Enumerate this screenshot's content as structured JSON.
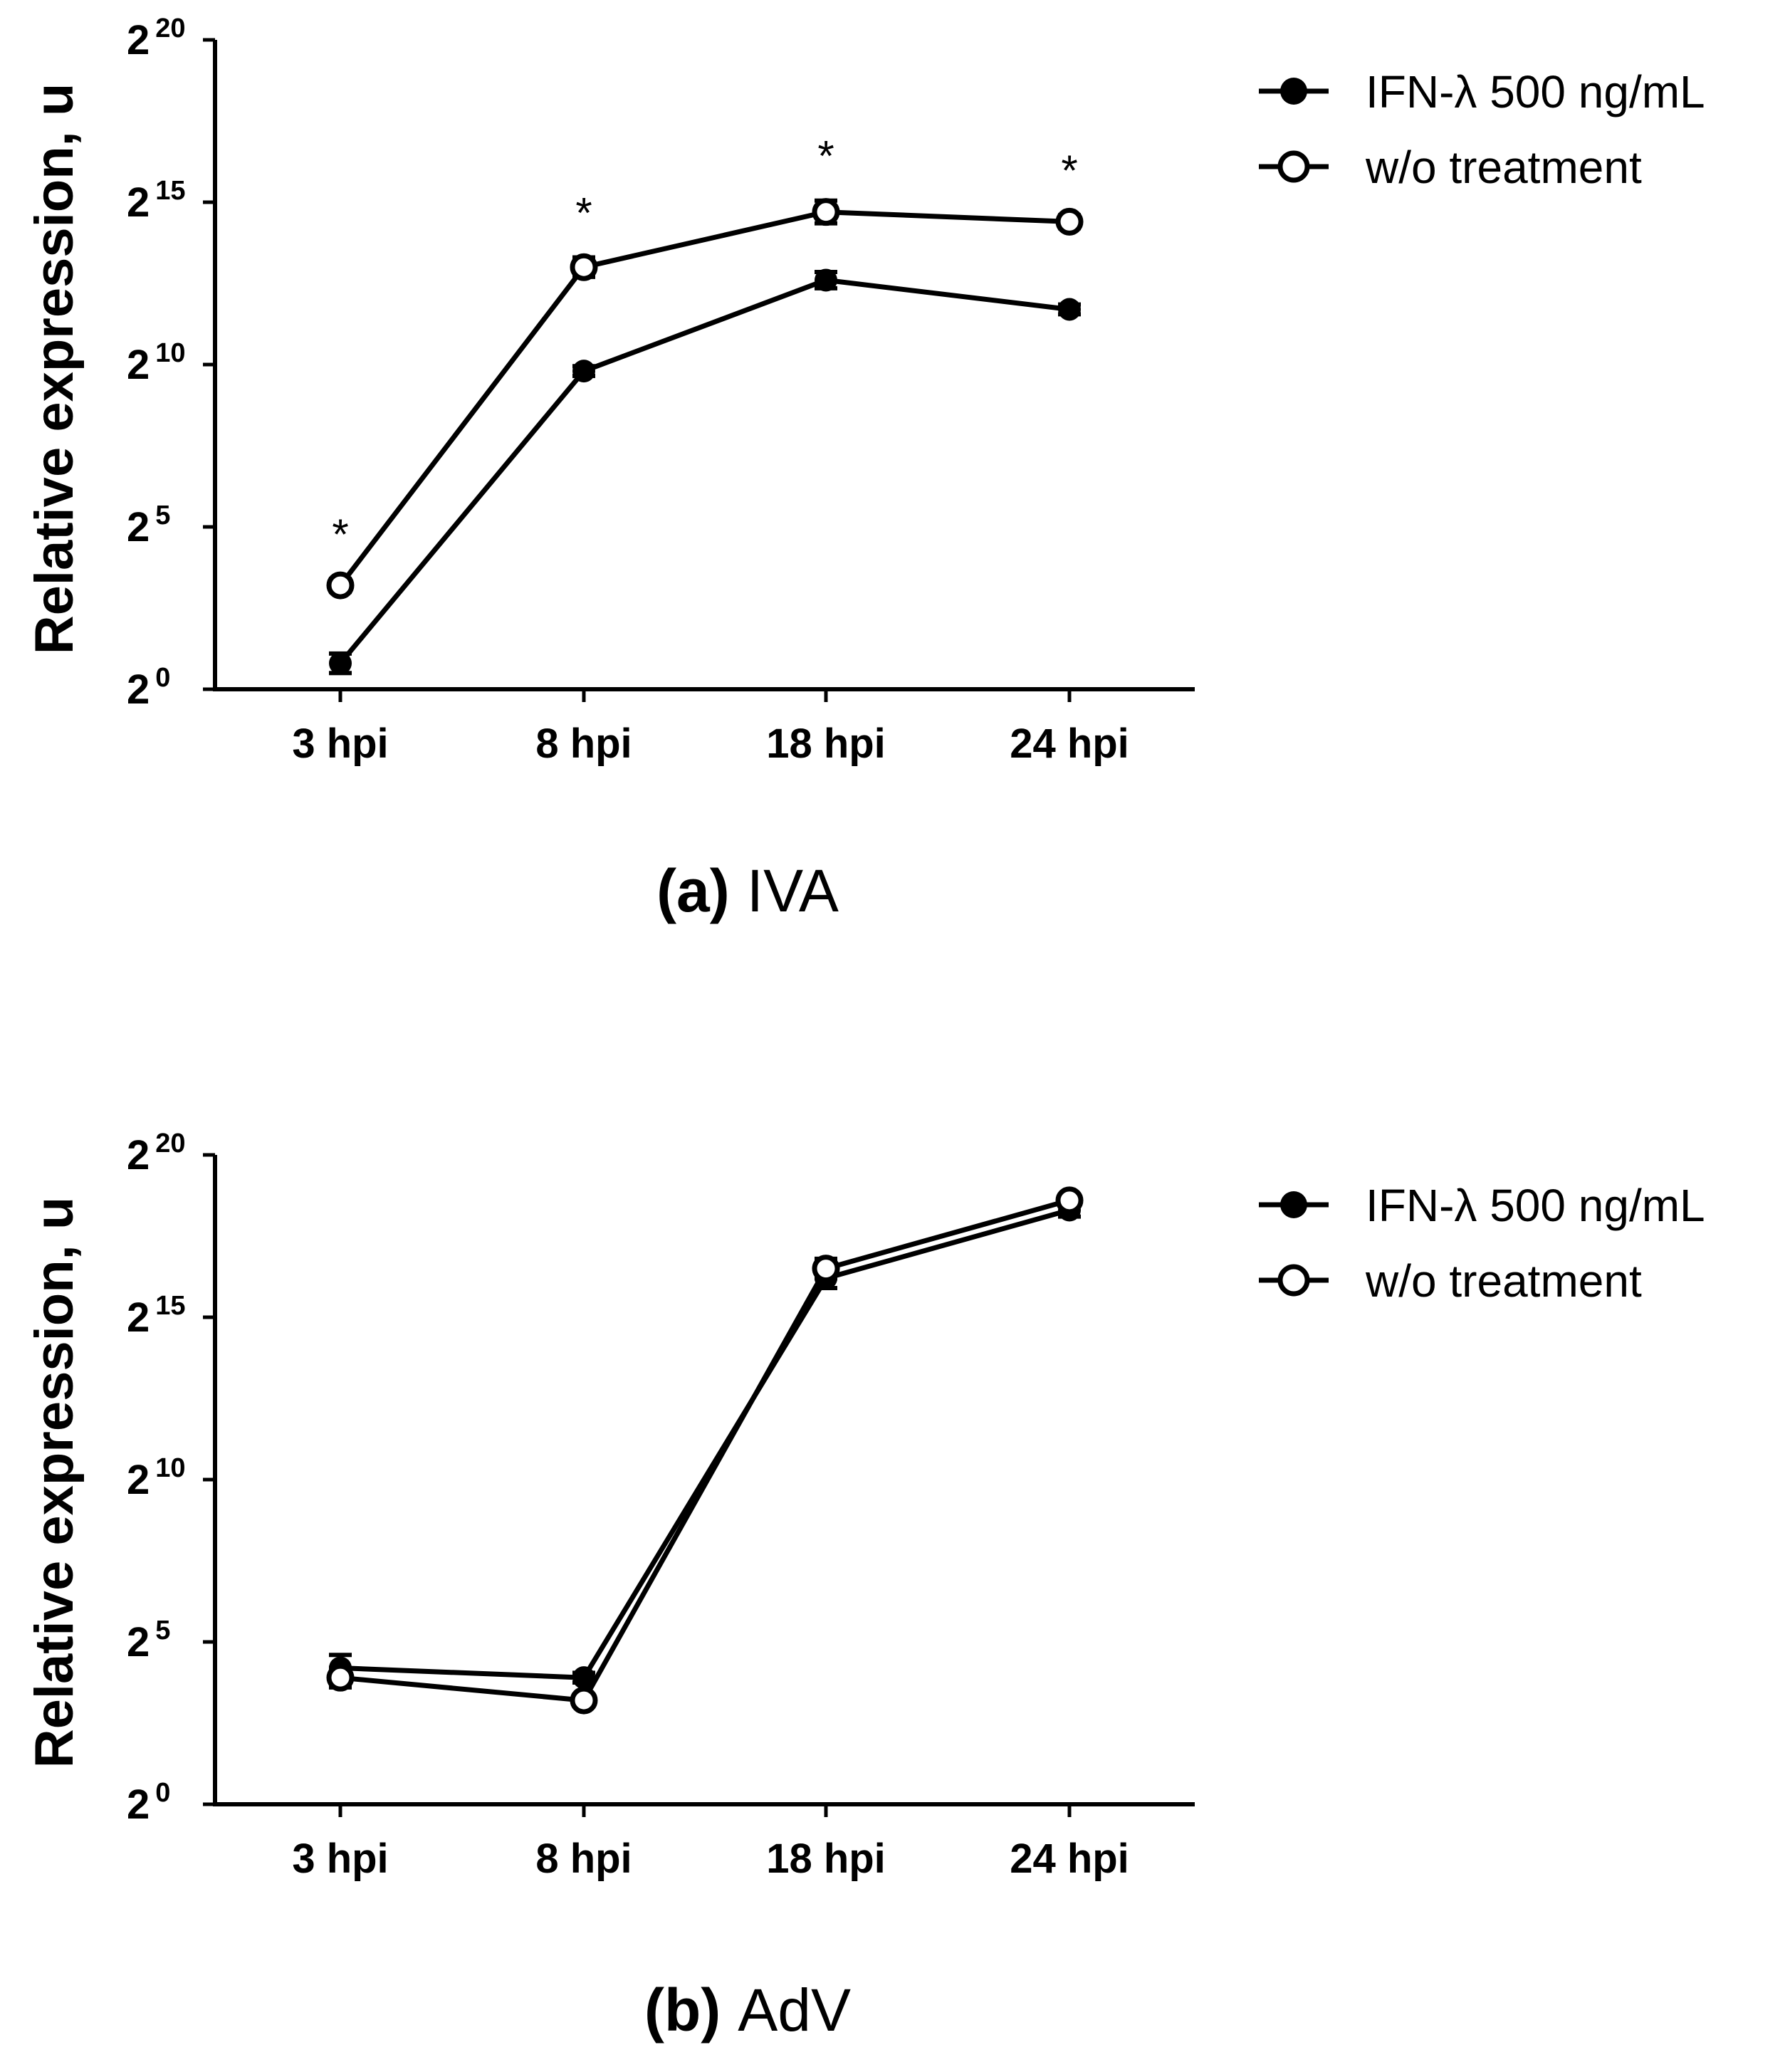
{
  "chart_data": [
    {
      "type": "line",
      "caption_label": "(a)",
      "caption_text": "IVA",
      "ylabel": "Relative expression, u",
      "yscale": "log2",
      "ylim_exponent": [
        0,
        20
      ],
      "yticks": [
        {
          "base": "2",
          "exp": "0"
        },
        {
          "base": "2",
          "exp": "5"
        },
        {
          "base": "2",
          "exp": "10"
        },
        {
          "base": "2",
          "exp": "15"
        },
        {
          "base": "2",
          "exp": "20"
        }
      ],
      "categories": [
        "3 hpi",
        "8 hpi",
        "18 hpi",
        "24 hpi"
      ],
      "series": [
        {
          "name": "IFN-λ 500 ng/mL",
          "marker": "filled-circle",
          "values_log2": [
            0.8,
            9.8,
            12.6,
            11.7
          ],
          "err_log2": [
            0.3,
            0.15,
            0.25,
            0.15
          ]
        },
        {
          "name": "w/o treatment",
          "marker": "open-circle",
          "values_log2": [
            3.2,
            13.0,
            14.7,
            14.4
          ],
          "err_log2": [
            0.2,
            0.3,
            0.35,
            0.2
          ]
        }
      ],
      "significance": [
        "*",
        "*",
        "*",
        "*"
      ],
      "legend_position": "top-right"
    },
    {
      "type": "line",
      "caption_label": "(b)",
      "caption_text": "AdV",
      "ylabel": "Relative expression, u",
      "yscale": "log2",
      "ylim_exponent": [
        0,
        20
      ],
      "yticks": [
        {
          "base": "2",
          "exp": "0"
        },
        {
          "base": "2",
          "exp": "5"
        },
        {
          "base": "2",
          "exp": "10"
        },
        {
          "base": "2",
          "exp": "15"
        },
        {
          "base": "2",
          "exp": "20"
        }
      ],
      "categories": [
        "3 hpi",
        "8 hpi",
        "18 hpi",
        "24 hpi"
      ],
      "series": [
        {
          "name": "IFN-λ 500 ng/mL",
          "marker": "filled-circle",
          "values_log2": [
            4.2,
            3.9,
            16.2,
            18.3
          ],
          "err_log2": [
            0.4,
            0.15,
            0.3,
            0.2
          ]
        },
        {
          "name": "w/o treatment",
          "marker": "open-circle",
          "values_log2": [
            3.9,
            3.2,
            16.5,
            18.6
          ],
          "err_log2": [
            0.3,
            0.15,
            0.3,
            0.15
          ]
        }
      ],
      "significance": [],
      "legend_position": "top-right"
    }
  ]
}
